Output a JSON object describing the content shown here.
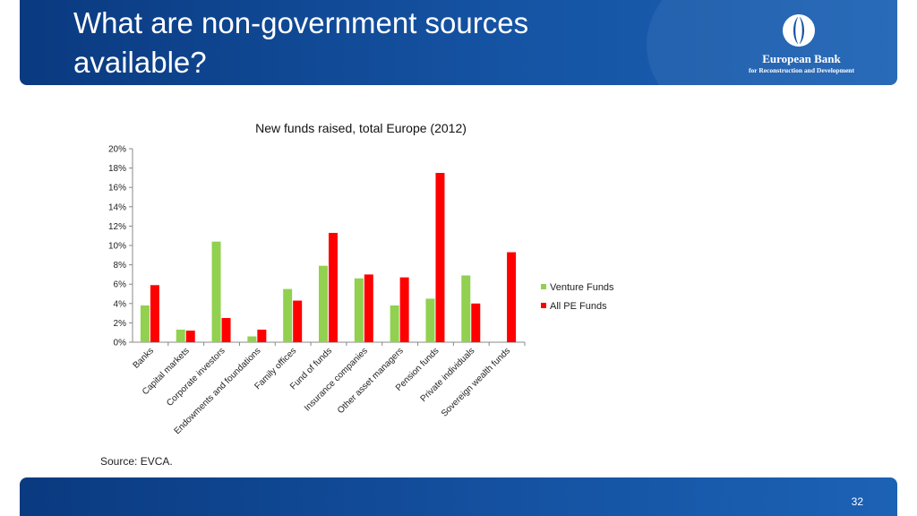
{
  "slide": {
    "title": "What are non-government sources available?",
    "source": "Source: EVCA.",
    "page_number": "32"
  },
  "logo": {
    "name": "European Bank",
    "subtitle": "for Reconstruction and Development"
  },
  "colors": {
    "header": "#1553a3",
    "venture": "#92d050",
    "pe": "#ff0000"
  },
  "chart_data": {
    "type": "bar",
    "title": "New funds raised, total Europe (2012)",
    "categories": [
      "Banks",
      "Capital markets",
      "Corporate investors",
      "Endowments and foundations",
      "Family offices",
      "Fund of funds",
      "Insurance companies",
      "Other asset managers",
      "Pension funds",
      "Private individuals",
      "Sovereign wealth funds"
    ],
    "series": [
      {
        "name": "Venture Funds",
        "color": "#92d050",
        "values": [
          3.8,
          1.3,
          10.4,
          0.6,
          5.5,
          7.9,
          6.6,
          3.8,
          4.5,
          6.9,
          0
        ]
      },
      {
        "name": "All PE Funds",
        "color": "#ff0000",
        "values": [
          5.9,
          1.2,
          2.5,
          1.3,
          4.3,
          11.3,
          7.0,
          6.7,
          17.5,
          4.0,
          9.3
        ]
      }
    ],
    "ylim": [
      0,
      20
    ],
    "yticks": [
      "0%",
      "2%",
      "4%",
      "6%",
      "8%",
      "10%",
      "12%",
      "14%",
      "16%",
      "18%",
      "20%"
    ],
    "legend": "right",
    "grid": false
  }
}
